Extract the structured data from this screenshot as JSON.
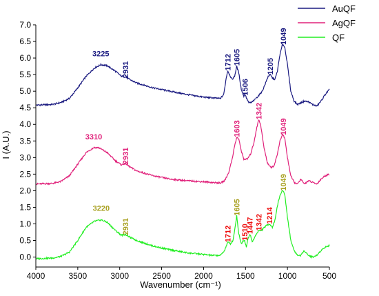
{
  "chart_data": {
    "type": "line",
    "xlabel": "Wavenumber (cm⁻¹)",
    "ylabel": "I (A.U.)",
    "xlim": [
      4000,
      500
    ],
    "ylim": [
      -0.3,
      7.0
    ],
    "x_reversed": true,
    "grid": false,
    "legend_position": "top-right",
    "x_ticks": [
      4000,
      3500,
      3000,
      2500,
      2000,
      1500,
      1000,
      500
    ],
    "y_ticks": [
      0.0,
      0.5,
      1.0,
      1.5,
      2.0,
      2.5,
      3.0,
      3.5,
      4.0,
      4.5,
      5.0,
      5.5,
      6.0,
      6.5,
      7.0
    ],
    "y_tick_labels": [
      "0.0",
      "0.5",
      "1.0",
      "1.5",
      "2.0",
      "2.5",
      "3.0",
      "3.5",
      "4.0",
      "4.5",
      "5.0",
      "5.5",
      "6.0",
      "6.5",
      "7.0"
    ],
    "series": [
      {
        "name": "AuQF",
        "color": "#1a1a80",
        "x": [
          4000,
          3800,
          3700,
          3600,
          3500,
          3400,
          3300,
          3225,
          3150,
          3050,
          2980,
          2931,
          2880,
          2800,
          2600,
          2400,
          2200,
          2000,
          1900,
          1800,
          1760,
          1730,
          1712,
          1690,
          1660,
          1630,
          1605,
          1580,
          1550,
          1520,
          1506,
          1490,
          1460,
          1430,
          1400,
          1350,
          1300,
          1260,
          1230,
          1205,
          1180,
          1150,
          1120,
          1090,
          1060,
          1049,
          1030,
          1000,
          960,
          920,
          880,
          840,
          800,
          750,
          700,
          650,
          600,
          550,
          500
        ],
        "y": [
          4.58,
          4.6,
          4.66,
          4.78,
          5.1,
          5.45,
          5.7,
          5.8,
          5.77,
          5.6,
          5.45,
          5.43,
          5.35,
          5.25,
          5.1,
          5.0,
          4.9,
          4.82,
          4.8,
          4.78,
          4.9,
          5.4,
          5.62,
          5.5,
          5.35,
          5.45,
          5.75,
          5.55,
          5.05,
          4.85,
          4.92,
          4.8,
          4.65,
          4.66,
          4.72,
          4.85,
          5.0,
          5.25,
          5.45,
          5.5,
          5.4,
          5.35,
          5.6,
          6.1,
          6.4,
          6.4,
          6.3,
          5.8,
          5.0,
          4.7,
          4.6,
          4.65,
          4.7,
          4.68,
          4.6,
          4.55,
          4.7,
          4.9,
          5.05
        ]
      },
      {
        "name": "AgQF",
        "color": "#e0207a",
        "x": [
          4000,
          3800,
          3700,
          3600,
          3500,
          3400,
          3310,
          3250,
          3150,
          3050,
          2980,
          2931,
          2880,
          2800,
          2600,
          2400,
          2200,
          2000,
          1900,
          1800,
          1750,
          1700,
          1660,
          1630,
          1603,
          1580,
          1550,
          1520,
          1480,
          1440,
          1400,
          1370,
          1342,
          1320,
          1280,
          1240,
          1200,
          1160,
          1120,
          1090,
          1060,
          1049,
          1030,
          1000,
          960,
          920,
          880,
          840,
          800,
          750,
          700,
          650,
          600,
          550,
          500
        ],
        "y": [
          2.2,
          2.22,
          2.28,
          2.45,
          2.8,
          3.15,
          3.3,
          3.3,
          3.15,
          2.9,
          2.78,
          2.82,
          2.72,
          2.6,
          2.45,
          2.35,
          2.3,
          2.27,
          2.25,
          2.23,
          2.3,
          2.55,
          2.95,
          3.35,
          3.62,
          3.55,
          3.2,
          2.95,
          2.95,
          3.1,
          3.45,
          3.85,
          4.15,
          4.0,
          3.3,
          2.85,
          2.7,
          2.75,
          3.1,
          3.5,
          3.68,
          3.68,
          3.55,
          3.0,
          2.45,
          2.25,
          2.2,
          2.35,
          2.2,
          2.3,
          2.25,
          2.2,
          2.35,
          2.45,
          2.5
        ]
      },
      {
        "name": "QF",
        "color": "#22ee22",
        "x": [
          4000,
          3800,
          3700,
          3600,
          3500,
          3400,
          3300,
          3220,
          3150,
          3050,
          2980,
          2931,
          2880,
          2800,
          2600,
          2400,
          2200,
          2000,
          1900,
          1800,
          1750,
          1712,
          1680,
          1650,
          1630,
          1605,
          1580,
          1550,
          1530,
          1510,
          1490,
          1470,
          1447,
          1420,
          1400,
          1370,
          1342,
          1310,
          1280,
          1250,
          1214,
          1180,
          1150,
          1120,
          1090,
          1060,
          1049,
          1030,
          1000,
          960,
          920,
          880,
          840,
          800,
          750,
          700,
          650,
          600,
          550,
          500
        ],
        "y": [
          -0.05,
          -0.03,
          0.02,
          0.15,
          0.5,
          0.9,
          1.08,
          1.12,
          1.05,
          0.8,
          0.66,
          0.68,
          0.6,
          0.5,
          0.33,
          0.22,
          0.13,
          0.08,
          0.05,
          0.05,
          0.2,
          0.45,
          0.4,
          0.5,
          0.8,
          1.25,
          0.7,
          0.4,
          0.5,
          0.5,
          0.3,
          0.55,
          0.7,
          0.45,
          0.55,
          0.7,
          0.8,
          0.8,
          0.88,
          0.95,
          1.0,
          0.9,
          1.1,
          1.55,
          1.85,
          2.0,
          2.0,
          1.85,
          1.2,
          0.5,
          0.2,
          0.05,
          0.05,
          0.2,
          0.05,
          0.0,
          0.05,
          0.2,
          0.3,
          0.35
        ]
      }
    ],
    "annotations": [
      {
        "text": "3225",
        "x": 3225,
        "y": 6.05,
        "color": "#1a1a80",
        "rotate": false
      },
      {
        "text": "2931",
        "x": 2931,
        "y": 5.65,
        "color": "#1a1a80",
        "rotate": true
      },
      {
        "text": "1712",
        "x": 1712,
        "y": 5.87,
        "color": "#1a1a80",
        "rotate": true
      },
      {
        "text": "1605",
        "x": 1605,
        "y": 6.02,
        "color": "#1a1a80",
        "rotate": true
      },
      {
        "text": "1506",
        "x": 1506,
        "y": 5.12,
        "color": "#1a1a80",
        "rotate": true
      },
      {
        "text": "1205",
        "x": 1205,
        "y": 5.75,
        "color": "#1a1a80",
        "rotate": true
      },
      {
        "text": "1049",
        "x": 1049,
        "y": 6.65,
        "color": "#1a1a80",
        "rotate": true
      },
      {
        "text": "3310",
        "x": 3310,
        "y": 3.55,
        "color": "#e0207a",
        "rotate": false
      },
      {
        "text": "2931",
        "x": 2931,
        "y": 3.05,
        "color": "#e0207a",
        "rotate": true
      },
      {
        "text": "1603",
        "x": 1603,
        "y": 3.87,
        "color": "#e0207a",
        "rotate": true
      },
      {
        "text": "1342",
        "x": 1342,
        "y": 4.4,
        "color": "#e0207a",
        "rotate": true
      },
      {
        "text": "1049",
        "x": 1049,
        "y": 3.93,
        "color": "#e0207a",
        "rotate": true
      },
      {
        "text": "3220",
        "x": 3220,
        "y": 1.4,
        "color": "#a8a020",
        "rotate": false
      },
      {
        "text": "2931",
        "x": 2931,
        "y": 0.92,
        "color": "#a8a020",
        "rotate": true
      },
      {
        "text": "1605",
        "x": 1605,
        "y": 1.5,
        "color": "#a8a020",
        "rotate": true
      },
      {
        "text": "1049",
        "x": 1049,
        "y": 2.25,
        "color": "#a8a020",
        "rotate": true
      },
      {
        "text": "1712",
        "x": 1712,
        "y": 0.7,
        "color": "#ee1111",
        "rotate": true
      },
      {
        "text": "1510",
        "x": 1510,
        "y": 0.75,
        "color": "#ee1111",
        "rotate": true
      },
      {
        "text": "1447",
        "x": 1447,
        "y": 0.95,
        "color": "#ee1111",
        "rotate": true
      },
      {
        "text": "1342",
        "x": 1342,
        "y": 1.05,
        "color": "#ee1111",
        "rotate": true
      },
      {
        "text": "1214",
        "x": 1214,
        "y": 1.25,
        "color": "#ee1111",
        "rotate": true
      }
    ]
  }
}
